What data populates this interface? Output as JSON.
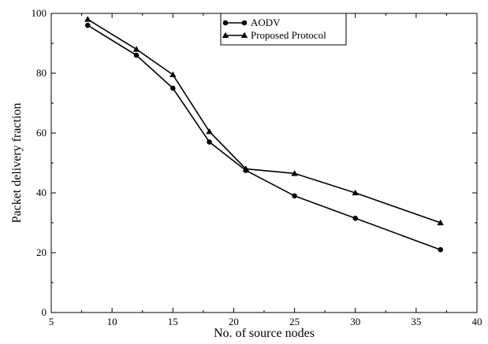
{
  "chart_data": {
    "type": "line",
    "title": "",
    "xlabel": "No. of source nodes",
    "ylabel": "Packet delivery fraction",
    "xlim": [
      5,
      40
    ],
    "ylim": [
      0,
      100
    ],
    "xticks": [
      5,
      10,
      15,
      20,
      25,
      30,
      35,
      40
    ],
    "yticks": [
      0,
      20,
      40,
      60,
      80,
      100
    ],
    "grid": false,
    "legend_position": "top-center",
    "series": [
      {
        "name": "AODV",
        "marker": "circle",
        "color": "#000000",
        "points": [
          {
            "x": 8,
            "y": 96
          },
          {
            "x": 12,
            "y": 86
          },
          {
            "x": 15,
            "y": 75
          },
          {
            "x": 18,
            "y": 57
          },
          {
            "x": 21,
            "y": 47.5
          },
          {
            "x": 25,
            "y": 39
          },
          {
            "x": 30,
            "y": 31.5
          },
          {
            "x": 37,
            "y": 21
          }
        ]
      },
      {
        "name": "Proposed Protocol",
        "marker": "triangle",
        "color": "#000000",
        "points": [
          {
            "x": 8,
            "y": 98
          },
          {
            "x": 12,
            "y": 88
          },
          {
            "x": 15,
            "y": 79.5
          },
          {
            "x": 18,
            "y": 60.5
          },
          {
            "x": 21,
            "y": 48
          },
          {
            "x": 25,
            "y": 46.5
          },
          {
            "x": 30,
            "y": 40
          },
          {
            "x": 37,
            "y": 30
          }
        ]
      }
    ]
  }
}
